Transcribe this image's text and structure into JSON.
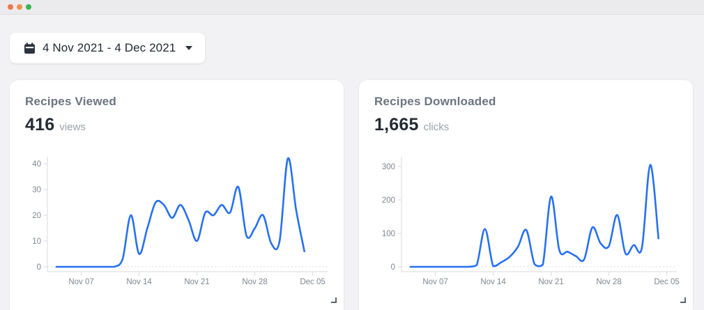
{
  "window": {
    "dot_colors": [
      "#F0764E",
      "#F0914B",
      "#3CB454"
    ]
  },
  "date_filter": {
    "label": "4 Nov 2021 - 4 Dec 2021"
  },
  "cards": [
    {
      "title": "Recipes Viewed",
      "value": "416",
      "unit": "views"
    },
    {
      "title": "Recipes Downloaded",
      "value": "1,665",
      "unit": "clicks"
    }
  ],
  "chart_data": [
    {
      "type": "line",
      "title": "Recipes Viewed",
      "series_name": "views",
      "dates": [
        "Nov 04",
        "Nov 05",
        "Nov 06",
        "Nov 07",
        "Nov 08",
        "Nov 09",
        "Nov 10",
        "Nov 11",
        "Nov 12",
        "Nov 13",
        "Nov 14",
        "Nov 15",
        "Nov 16",
        "Nov 17",
        "Nov 18",
        "Nov 19",
        "Nov 20",
        "Nov 21",
        "Nov 22",
        "Nov 23",
        "Nov 24",
        "Nov 25",
        "Nov 26",
        "Nov 27",
        "Nov 28",
        "Nov 29",
        "Nov 30",
        "Dec 01",
        "Dec 02",
        "Dec 03",
        "Dec 04"
      ],
      "values": [
        0,
        0,
        0,
        0,
        0,
        0,
        0,
        0,
        3,
        20,
        5,
        15,
        25,
        24,
        19,
        24,
        18,
        10,
        21,
        20,
        24,
        21,
        31,
        12,
        15,
        20,
        9,
        10,
        42,
        22,
        6
      ],
      "x_tick_labels": [
        "Nov 07",
        "Nov 14",
        "Nov 21",
        "Nov 28",
        "Dec 05"
      ],
      "y_ticks": [
        0,
        10,
        20,
        30,
        40
      ],
      "ylim": [
        0,
        44
      ],
      "xlabel": "",
      "ylabel": "",
      "legend": "none",
      "grid": "dotted zero baseline only",
      "line_color": "#2670F2"
    },
    {
      "type": "line",
      "title": "Recipes Downloaded",
      "series_name": "clicks",
      "dates": [
        "Nov 04",
        "Nov 05",
        "Nov 06",
        "Nov 07",
        "Nov 08",
        "Nov 09",
        "Nov 10",
        "Nov 11",
        "Nov 12",
        "Nov 13",
        "Nov 14",
        "Nov 15",
        "Nov 16",
        "Nov 17",
        "Nov 18",
        "Nov 19",
        "Nov 20",
        "Nov 21",
        "Nov 22",
        "Nov 23",
        "Nov 24",
        "Nov 25",
        "Nov 26",
        "Nov 27",
        "Nov 28",
        "Nov 29",
        "Nov 30",
        "Dec 01",
        "Dec 02",
        "Dec 03",
        "Dec 04"
      ],
      "values": [
        0,
        0,
        0,
        0,
        0,
        0,
        0,
        0,
        5,
        113,
        2,
        14,
        30,
        60,
        110,
        8,
        6,
        210,
        50,
        45,
        32,
        22,
        118,
        70,
        62,
        155,
        40,
        65,
        58,
        305,
        85
      ],
      "x_tick_labels": [
        "Nov 07",
        "Nov 14",
        "Nov 21",
        "Nov 28",
        "Dec 05"
      ],
      "y_ticks": [
        0,
        100,
        200,
        300
      ],
      "ylim": [
        0,
        330
      ],
      "xlabel": "",
      "ylabel": "",
      "legend": "none",
      "grid": "dotted zero baseline only",
      "line_color": "#2670F2"
    }
  ]
}
